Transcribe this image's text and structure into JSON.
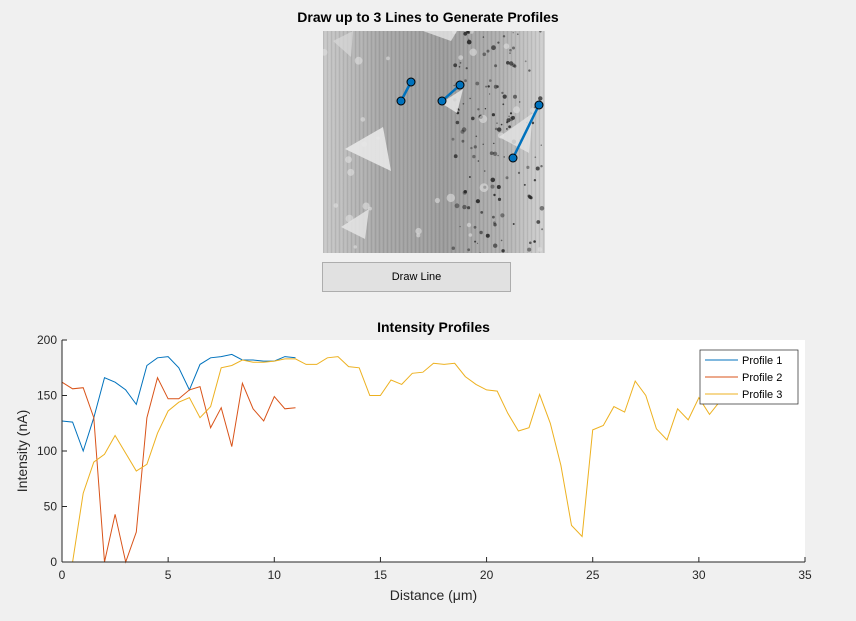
{
  "figure": {
    "title": "Draw up to 3 Lines to Generate Profiles",
    "draw_button_label": "Draw Line"
  },
  "colors": {
    "profile1": "#0072bd",
    "profile2": "#d95319",
    "profile3": "#edb120",
    "line_marker": "#0072bd"
  },
  "chart_data": {
    "type": "line",
    "title": "Intensity Profiles",
    "xlabel": "Distance (μm)",
    "ylabel": "Intensity (nA)",
    "xlim": [
      0,
      35
    ],
    "ylim": [
      0,
      200
    ],
    "xticks": [
      0,
      5,
      10,
      15,
      20,
      25,
      30,
      35
    ],
    "yticks": [
      0,
      50,
      100,
      150,
      200
    ],
    "legend_position": "top-right",
    "grid": false,
    "series": [
      {
        "name": "Profile 1",
        "x": [
          0,
          0.5,
          1,
          1.5,
          2,
          2.5,
          3,
          3.5,
          4,
          4.5,
          5,
          5.5,
          6,
          6.5,
          7,
          7.5,
          8,
          8.5,
          9,
          9.5,
          10,
          10.5,
          11
        ],
        "y": [
          127,
          126,
          100,
          130,
          166,
          162,
          155,
          142,
          177,
          184,
          185,
          175,
          155,
          178,
          184,
          185,
          187,
          182,
          182,
          181,
          181,
          185,
          184
        ]
      },
      {
        "name": "Profile 2",
        "x": [
          0,
          0.5,
          1,
          1.5,
          2,
          2.5,
          3,
          3.5,
          4,
          4.5,
          5,
          5.5,
          6,
          6.5,
          7,
          7.5,
          8,
          8.5,
          9,
          9.5,
          10,
          10.5,
          11
        ],
        "y": [
          162,
          156,
          157,
          130,
          0,
          43,
          0,
          27,
          130,
          166,
          147,
          147,
          155,
          158,
          121,
          139,
          104,
          161,
          138,
          127,
          149,
          138,
          139
        ]
      },
      {
        "name": "Profile 3",
        "x": [
          0,
          0.5,
          1,
          1.5,
          2,
          2.5,
          3,
          3.5,
          4,
          4.5,
          5,
          5.5,
          6,
          6.5,
          7,
          7.5,
          8,
          8.5,
          9,
          9.5,
          10,
          10.5,
          11,
          11.5,
          12,
          12.5,
          13,
          13.5,
          14,
          14.5,
          15,
          15.5,
          16,
          16.5,
          17,
          17.5,
          18,
          18.5,
          19,
          19.5,
          20,
          20.5,
          21,
          21.5,
          22,
          22.5,
          23,
          23.5,
          24,
          24.5,
          25,
          25.5,
          26,
          26.5,
          27,
          27.5,
          28,
          28.5,
          29,
          29.5,
          30,
          30.5,
          31,
          31.5
        ],
        "y": [
          0,
          0,
          62,
          90,
          97,
          114,
          98,
          82,
          88,
          116,
          136,
          144,
          148,
          130,
          140,
          175,
          177,
          182,
          180,
          180,
          181,
          183,
          183,
          178,
          178,
          184,
          185,
          176,
          175,
          150,
          150,
          164,
          160,
          170,
          171,
          179,
          178,
          179,
          167,
          160,
          155,
          154,
          134,
          118,
          121,
          151,
          125,
          87,
          33,
          23,
          119,
          123,
          140,
          135,
          163,
          150,
          120,
          110,
          138,
          128,
          148,
          133,
          145,
          148
        ]
      }
    ],
    "image_overlay": {
      "line_count": 3
    }
  }
}
